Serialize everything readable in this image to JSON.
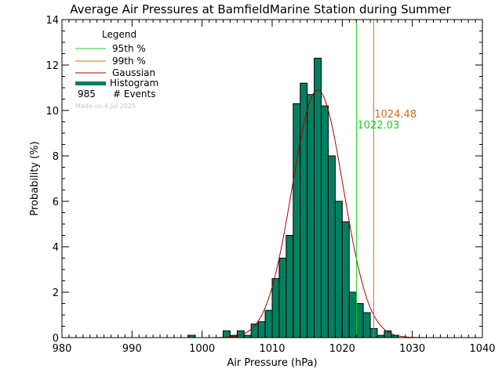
{
  "colors": {
    "p95": "#22cc22",
    "p99": "#cc6a1a",
    "gaussian": "#aa0000",
    "histogram": "#008060",
    "axis": "#000000",
    "made_on": "#c8c8c8"
  },
  "legend": {
    "title": "Legend",
    "p95_label": "95th %",
    "p99_label": "99th %",
    "gaussian_label": "Gaussian",
    "histogram_label": "Histogram",
    "events_count": "985",
    "events_label": "# Events",
    "made_on": "Made on 4 Jul 2025"
  },
  "chart_data": {
    "type": "bar",
    "title": "Average Air Pressures at BamfieldMarine Station during Summer",
    "xlabel": "Air Pressure (hPa)",
    "ylabel": "Probability (%)",
    "xlim": [
      980,
      1040
    ],
    "ylim": [
      0,
      14
    ],
    "x_ticks": [
      980,
      990,
      1000,
      1010,
      1020,
      1030,
      1040
    ],
    "y_ticks": [
      0,
      2,
      4,
      6,
      8,
      10,
      12,
      14
    ],
    "bin_width": 1,
    "bins_start": [
      998,
      1003,
      1004,
      1005,
      1006,
      1007,
      1008,
      1009,
      1010,
      1011,
      1012,
      1013,
      1014,
      1015,
      1016,
      1017,
      1018,
      1019,
      1020,
      1021,
      1022,
      1023,
      1024,
      1025,
      1026,
      1027
    ],
    "values": [
      0.1,
      0.3,
      0.1,
      0.3,
      0.1,
      0.6,
      0.7,
      1.2,
      2.6,
      3.5,
      4.5,
      10.3,
      11.2,
      10.7,
      12.3,
      10.2,
      8.0,
      6.0,
      5.1,
      2.0,
      1.5,
      1.1,
      0.4,
      0.1,
      0.3,
      0.1
    ],
    "gaussian": {
      "mean": 1016.5,
      "sigma": 3.65,
      "peak": 10.9
    },
    "percentile_95": 1022.03,
    "percentile_99": 1024.48,
    "percentile_95_label": "1022.03",
    "percentile_99_label": "1024.48"
  }
}
